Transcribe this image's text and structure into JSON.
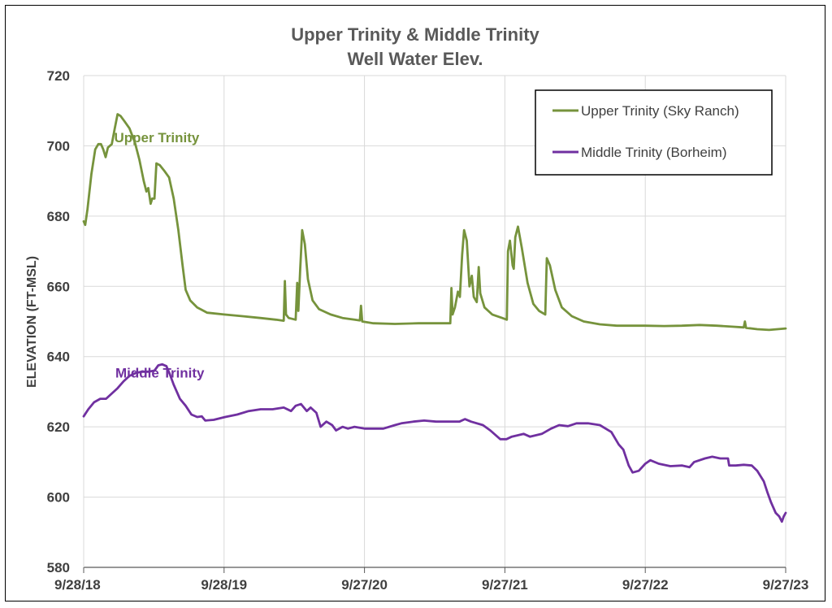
{
  "chart_data": {
    "type": "line",
    "title": [
      "Upper Trinity & Middle Trinity",
      "Well Water Elev."
    ],
    "xlabel": "",
    "ylabel": "ELEVATION (FT-MSL)",
    "x_range": [
      "2018-09-28",
      "2023-09-27"
    ],
    "ylim": [
      580,
      720
    ],
    "yticks": [
      580,
      600,
      620,
      640,
      660,
      680,
      700,
      720
    ],
    "xticks": [
      {
        "date": "2018-09-28",
        "label": "9/28/18"
      },
      {
        "date": "2019-09-28",
        "label": "9/28/19"
      },
      {
        "date": "2020-09-27",
        "label": "9/27/20"
      },
      {
        "date": "2021-09-27",
        "label": "9/27/21"
      },
      {
        "date": "2022-09-27",
        "label": "9/27/22"
      },
      {
        "date": "2023-09-27",
        "label": "9/27/23"
      }
    ],
    "grid": true,
    "legend": {
      "position": "top-right",
      "entries": [
        "Upper Trinity (Sky Ranch)",
        "Middle Trinity (Borheim)"
      ]
    },
    "annotations": [
      {
        "text": "Upper Trinity",
        "color": "#76933C",
        "x": "2019-04-06",
        "y": 701
      },
      {
        "text": "Middle Trinity",
        "color": "#7030A0",
        "x": "2019-04-14",
        "y": 634
      }
    ],
    "series": [
      {
        "name": "Upper Trinity (Sky Ranch)",
        "color": "#76933C",
        "points": [
          [
            "2018-09-28",
            678.5
          ],
          [
            "2018-10-02",
            677.5
          ],
          [
            "2018-10-08",
            682
          ],
          [
            "2018-10-18",
            692
          ],
          [
            "2018-10-28",
            699
          ],
          [
            "2018-11-05",
            700.5
          ],
          [
            "2018-11-12",
            700.5
          ],
          [
            "2018-11-18",
            699
          ],
          [
            "2018-11-24",
            696.8
          ],
          [
            "2018-11-30",
            699.5
          ],
          [
            "2018-12-10",
            700.5
          ],
          [
            "2018-12-18",
            705
          ],
          [
            "2018-12-25",
            709
          ],
          [
            "2019-01-02",
            708.5
          ],
          [
            "2019-01-12",
            707
          ],
          [
            "2019-01-25",
            705
          ],
          [
            "2019-02-08",
            701
          ],
          [
            "2019-02-20",
            696
          ],
          [
            "2019-03-03",
            690
          ],
          [
            "2019-03-10",
            687
          ],
          [
            "2019-03-15",
            688
          ],
          [
            "2019-03-21",
            683.5
          ],
          [
            "2019-03-25",
            685
          ],
          [
            "2019-03-31",
            685
          ],
          [
            "2019-04-05",
            695
          ],
          [
            "2019-04-14",
            694.5
          ],
          [
            "2019-04-25",
            693
          ],
          [
            "2019-05-08",
            691
          ],
          [
            "2019-05-20",
            685
          ],
          [
            "2019-06-01",
            676
          ],
          [
            "2019-06-12",
            666
          ],
          [
            "2019-06-20",
            659
          ],
          [
            "2019-07-02",
            656
          ],
          [
            "2019-07-20",
            654
          ],
          [
            "2019-08-15",
            652.5
          ],
          [
            "2019-09-28",
            652
          ],
          [
            "2019-11-15",
            651.5
          ],
          [
            "2019-12-31",
            651
          ],
          [
            "2020-02-10",
            650.5
          ],
          [
            "2020-03-01",
            650.2
          ],
          [
            "2020-03-04",
            661.5
          ],
          [
            "2020-03-07",
            652
          ],
          [
            "2020-03-14",
            651
          ],
          [
            "2020-04-01",
            650.5
          ],
          [
            "2020-04-05",
            661
          ],
          [
            "2020-04-08",
            653
          ],
          [
            "2020-04-13",
            665
          ],
          [
            "2020-04-18",
            676
          ],
          [
            "2020-04-25",
            672
          ],
          [
            "2020-05-03",
            662
          ],
          [
            "2020-05-15",
            656
          ],
          [
            "2020-06-01",
            653.5
          ],
          [
            "2020-07-01",
            652
          ],
          [
            "2020-08-01",
            651
          ],
          [
            "2020-09-01",
            650.5
          ],
          [
            "2020-09-15",
            650.3
          ],
          [
            "2020-09-18",
            654.5
          ],
          [
            "2020-09-21",
            650
          ],
          [
            "2020-10-20",
            649.5
          ],
          [
            "2020-12-15",
            649.3
          ],
          [
            "2021-02-15",
            649.5
          ],
          [
            "2021-03-10",
            649.5
          ],
          [
            "2021-04-15",
            649.5
          ],
          [
            "2021-05-08",
            649.5
          ],
          [
            "2021-05-11",
            659.5
          ],
          [
            "2021-05-14",
            652
          ],
          [
            "2021-05-20",
            654
          ],
          [
            "2021-05-28",
            658.5
          ],
          [
            "2021-06-02",
            657
          ],
          [
            "2021-06-08",
            669
          ],
          [
            "2021-06-13",
            676
          ],
          [
            "2021-06-20",
            673
          ],
          [
            "2021-06-27",
            660
          ],
          [
            "2021-07-03",
            663
          ],
          [
            "2021-07-08",
            657
          ],
          [
            "2021-07-16",
            655.5
          ],
          [
            "2021-07-21",
            665.5
          ],
          [
            "2021-07-25",
            658
          ],
          [
            "2021-08-05",
            654
          ],
          [
            "2021-08-25",
            652
          ],
          [
            "2021-09-20",
            651
          ],
          [
            "2021-10-02",
            650.5
          ],
          [
            "2021-10-05",
            670
          ],
          [
            "2021-10-10",
            673
          ],
          [
            "2021-10-17",
            666
          ],
          [
            "2021-10-20",
            665
          ],
          [
            "2021-10-24",
            674
          ],
          [
            "2021-10-31",
            677
          ],
          [
            "2021-11-10",
            671
          ],
          [
            "2021-11-25",
            661
          ],
          [
            "2021-12-10",
            655
          ],
          [
            "2021-12-25",
            653
          ],
          [
            "2022-01-10",
            652
          ],
          [
            "2022-01-14",
            668
          ],
          [
            "2022-01-22",
            666
          ],
          [
            "2022-02-05",
            659
          ],
          [
            "2022-02-22",
            654
          ],
          [
            "2022-03-20",
            651.5
          ],
          [
            "2022-04-20",
            650
          ],
          [
            "2022-06-01",
            649.2
          ],
          [
            "2022-07-15",
            648.8
          ],
          [
            "2022-09-27",
            648.8
          ],
          [
            "2022-11-15",
            648.7
          ],
          [
            "2022-12-31",
            648.8
          ],
          [
            "2023-02-15",
            649
          ],
          [
            "2023-04-01",
            648.8
          ],
          [
            "2023-05-15",
            648.5
          ],
          [
            "2023-06-10",
            648.3
          ],
          [
            "2023-06-13",
            650
          ],
          [
            "2023-06-16",
            648.2
          ],
          [
            "2023-07-15",
            647.8
          ],
          [
            "2023-08-15",
            647.6
          ],
          [
            "2023-09-27",
            648
          ]
        ]
      },
      {
        "name": "Middle Trinity (Borheim)",
        "color": "#7030A0",
        "points": [
          [
            "2018-09-28",
            623
          ],
          [
            "2018-10-10",
            625
          ],
          [
            "2018-10-25",
            627
          ],
          [
            "2018-11-10",
            628
          ],
          [
            "2018-11-25",
            628
          ],
          [
            "2018-12-10",
            629.5
          ],
          [
            "2018-12-25",
            631
          ],
          [
            "2019-01-10",
            633
          ],
          [
            "2019-01-25",
            634.5
          ],
          [
            "2019-02-10",
            635.3
          ],
          [
            "2019-02-25",
            635.7
          ],
          [
            "2019-03-15",
            635.7
          ],
          [
            "2019-03-31",
            636
          ],
          [
            "2019-04-10",
            637.5
          ],
          [
            "2019-04-20",
            637.8
          ],
          [
            "2019-05-01",
            637.3
          ],
          [
            "2019-05-10",
            635
          ],
          [
            "2019-05-20",
            632
          ],
          [
            "2019-06-05",
            628
          ],
          [
            "2019-06-20",
            626
          ],
          [
            "2019-07-05",
            623.5
          ],
          [
            "2019-07-20",
            622.8
          ],
          [
            "2019-08-01",
            623
          ],
          [
            "2019-08-10",
            621.8
          ],
          [
            "2019-09-01",
            622
          ],
          [
            "2019-10-01",
            622.8
          ],
          [
            "2019-11-01",
            623.5
          ],
          [
            "2019-12-01",
            624.5
          ],
          [
            "2020-01-01",
            625
          ],
          [
            "2020-02-01",
            625
          ],
          [
            "2020-03-01",
            625.5
          ],
          [
            "2020-03-20",
            624.5
          ],
          [
            "2020-04-01",
            626
          ],
          [
            "2020-04-15",
            626.5
          ],
          [
            "2020-04-30",
            624.5
          ],
          [
            "2020-05-10",
            625.5
          ],
          [
            "2020-05-25",
            624
          ],
          [
            "2020-06-05",
            620
          ],
          [
            "2020-06-20",
            621.5
          ],
          [
            "2020-07-05",
            620.5
          ],
          [
            "2020-07-15",
            619
          ],
          [
            "2020-08-01",
            620
          ],
          [
            "2020-08-15",
            619.5
          ],
          [
            "2020-09-01",
            620
          ],
          [
            "2020-09-27",
            619.5
          ],
          [
            "2020-10-15",
            619.5
          ],
          [
            "2020-11-15",
            619.5
          ],
          [
            "2020-12-15",
            620.5
          ],
          [
            "2021-01-01",
            621
          ],
          [
            "2021-02-01",
            621.5
          ],
          [
            "2021-03-01",
            621.8
          ],
          [
            "2021-04-01",
            621.5
          ],
          [
            "2021-05-01",
            621.5
          ],
          [
            "2021-06-01",
            621.5
          ],
          [
            "2021-06-15",
            622.2
          ],
          [
            "2021-07-01",
            621.5
          ],
          [
            "2021-08-01",
            620.5
          ],
          [
            "2021-08-20",
            619
          ],
          [
            "2021-09-15",
            616.5
          ],
          [
            "2021-10-01",
            616.5
          ],
          [
            "2021-10-15",
            617.2
          ],
          [
            "2021-11-15",
            618
          ],
          [
            "2021-12-01",
            617.2
          ],
          [
            "2022-01-01",
            618
          ],
          [
            "2022-01-25",
            619.5
          ],
          [
            "2022-02-15",
            620.5
          ],
          [
            "2022-03-10",
            620.2
          ],
          [
            "2022-04-01",
            621
          ],
          [
            "2022-05-01",
            621
          ],
          [
            "2022-06-01",
            620.5
          ],
          [
            "2022-07-01",
            618.5
          ],
          [
            "2022-07-20",
            615
          ],
          [
            "2022-08-01",
            613.5
          ],
          [
            "2022-08-15",
            609
          ],
          [
            "2022-08-25",
            607
          ],
          [
            "2022-09-10",
            607.5
          ],
          [
            "2022-09-27",
            609.5
          ],
          [
            "2022-10-10",
            610.5
          ],
          [
            "2022-11-01",
            609.5
          ],
          [
            "2022-12-01",
            608.8
          ],
          [
            "2023-01-01",
            609
          ],
          [
            "2023-01-20",
            608.5
          ],
          [
            "2023-02-01",
            610
          ],
          [
            "2023-03-01",
            611
          ],
          [
            "2023-03-20",
            611.5
          ],
          [
            "2023-04-10",
            611
          ],
          [
            "2023-04-30",
            611
          ],
          [
            "2023-05-03",
            609
          ],
          [
            "2023-05-20",
            609
          ],
          [
            "2023-06-10",
            609.2
          ],
          [
            "2023-07-01",
            609
          ],
          [
            "2023-07-15",
            607.5
          ],
          [
            "2023-08-01",
            604.5
          ],
          [
            "2023-08-10",
            601.5
          ],
          [
            "2023-08-20",
            598.5
          ],
          [
            "2023-09-01",
            595.5
          ],
          [
            "2023-09-10",
            594.5
          ],
          [
            "2023-09-17",
            593
          ],
          [
            "2023-09-22",
            594.5
          ],
          [
            "2023-09-27",
            595.5
          ]
        ]
      }
    ]
  }
}
